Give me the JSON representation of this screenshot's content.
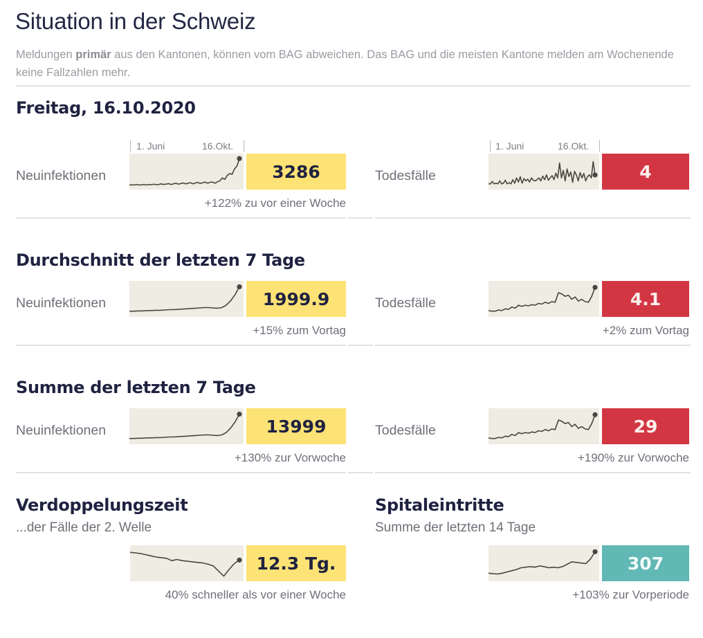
{
  "header": {
    "title": "Situation in der Schweiz",
    "note_prefix": "Meldungen ",
    "note_bold": "primär",
    "note_suffix": " aus den Kantonen, können vom BAG abweichen. Das BAG und die meisten Kantone melden am Wochenende keine Fallzahlen mehr."
  },
  "colors": {
    "cases_box": "#fde275",
    "deaths_box": "#d33643",
    "hospital_box": "#61b8b5",
    "sparkline_bg": "#eeece3",
    "sparkline_line": "#4a463f"
  },
  "sections": [
    {
      "heading": "Freitag, 16.10.2020",
      "axis": {
        "start": "1. Juni",
        "end": "16.Okt."
      },
      "left": {
        "label": "Neuinfektionen",
        "value": "3286",
        "change": "+122% zu vor einer Woche"
      },
      "right": {
        "label": "Todesfälle",
        "value": "4",
        "change": ""
      }
    },
    {
      "heading": "Durchschnitt der letzten 7 Tage",
      "left": {
        "label": "Neuinfektionen",
        "value": "1999.9",
        "change": "+15% zum Vortag"
      },
      "right": {
        "label": "Todesfälle",
        "value": "4.1",
        "change": "+2% zum Vortag"
      }
    },
    {
      "heading": "Summe der letzten 7 Tage",
      "left": {
        "label": "Neuinfektionen",
        "value": "13999",
        "change": "+130% zur Vorwoche"
      },
      "right": {
        "label": "Todesfälle",
        "value": "29",
        "change": "+190% zur Vorwoche"
      }
    }
  ],
  "doubling": {
    "heading": "Verdoppelungszeit",
    "subheading": "...der Fälle der 2. Welle",
    "value": "12.3 Tg.",
    "change": "40% schneller als vor einer Woche"
  },
  "hospital": {
    "heading": "Spitaleintritte",
    "subheading": "Summe der letzten 14 Tage",
    "value": "307",
    "change": "+103% zur Vorperiode"
  },
  "sparklines": {
    "daily_cases": [
      0.06,
      0.07,
      0.06,
      0.08,
      0.06,
      0.07,
      0.08,
      0.06,
      0.08,
      0.07,
      0.09,
      0.07,
      0.08,
      0.1,
      0.08,
      0.09,
      0.11,
      0.08,
      0.1,
      0.12,
      0.09,
      0.11,
      0.13,
      0.1,
      0.12,
      0.14,
      0.1,
      0.13,
      0.15,
      0.11,
      0.14,
      0.16,
      0.12,
      0.15,
      0.16,
      0.12,
      0.17,
      0.2,
      0.3,
      0.25,
      0.38,
      0.45,
      0.42,
      0.6,
      0.7,
      0.95
    ],
    "daily_deaths": [
      0.1,
      0.1,
      0.18,
      0.1,
      0.12,
      0.1,
      0.2,
      0.1,
      0.12,
      0.22,
      0.1,
      0.14,
      0.1,
      0.24,
      0.12,
      0.3,
      0.16,
      0.34,
      0.12,
      0.28,
      0.2,
      0.26,
      0.16,
      0.3,
      0.22,
      0.2,
      0.24,
      0.3,
      0.2,
      0.36,
      0.24,
      0.4,
      0.22,
      0.3,
      0.38,
      0.24,
      0.46,
      0.3,
      0.8,
      0.3,
      0.55,
      0.2,
      0.6,
      0.35,
      0.5,
      0.15,
      0.52,
      0.4,
      0.2,
      0.48,
      0.3,
      0.45,
      0.2,
      0.35,
      0.4,
      0.3,
      0.85,
      0.4
    ],
    "avg7_cases": [
      0.1,
      0.1,
      0.11,
      0.11,
      0.12,
      0.12,
      0.13,
      0.13,
      0.14,
      0.15,
      0.15,
      0.16,
      0.17,
      0.18,
      0.19,
      0.2,
      0.21,
      0.22,
      0.22,
      0.21,
      0.2,
      0.22,
      0.3,
      0.45,
      0.65,
      0.92
    ],
    "avg7_deaths": [
      0.12,
      0.1,
      0.1,
      0.14,
      0.12,
      0.18,
      0.16,
      0.24,
      0.2,
      0.3,
      0.26,
      0.3,
      0.28,
      0.32,
      0.3,
      0.36,
      0.34,
      0.4,
      0.36,
      0.42,
      0.4,
      0.72,
      0.68,
      0.6,
      0.64,
      0.5,
      0.58,
      0.44,
      0.5,
      0.42,
      0.4,
      0.6,
      0.9
    ],
    "sum7_cases": [
      0.1,
      0.1,
      0.11,
      0.11,
      0.12,
      0.12,
      0.13,
      0.13,
      0.14,
      0.15,
      0.15,
      0.16,
      0.17,
      0.18,
      0.19,
      0.2,
      0.21,
      0.22,
      0.22,
      0.21,
      0.2,
      0.22,
      0.3,
      0.45,
      0.65,
      0.92
    ],
    "sum7_deaths": [
      0.12,
      0.1,
      0.1,
      0.14,
      0.12,
      0.18,
      0.16,
      0.24,
      0.2,
      0.3,
      0.26,
      0.3,
      0.28,
      0.32,
      0.3,
      0.36,
      0.34,
      0.4,
      0.36,
      0.42,
      0.4,
      0.72,
      0.68,
      0.6,
      0.64,
      0.5,
      0.58,
      0.44,
      0.5,
      0.42,
      0.4,
      0.6,
      0.9
    ],
    "doubling_time": [
      0.88,
      0.86,
      0.84,
      0.8,
      0.76,
      0.72,
      0.7,
      0.68,
      0.6,
      0.64,
      0.6,
      0.58,
      0.56,
      0.54,
      0.52,
      0.48,
      0.42,
      0.25,
      0.08,
      0.3,
      0.5,
      0.62
    ],
    "hospital": [
      0.18,
      0.16,
      0.15,
      0.18,
      0.22,
      0.26,
      0.3,
      0.36,
      0.38,
      0.4,
      0.38,
      0.42,
      0.4,
      0.36,
      0.38,
      0.36,
      0.4,
      0.48,
      0.56,
      0.54,
      0.52,
      0.5,
      0.65,
      0.9
    ]
  }
}
